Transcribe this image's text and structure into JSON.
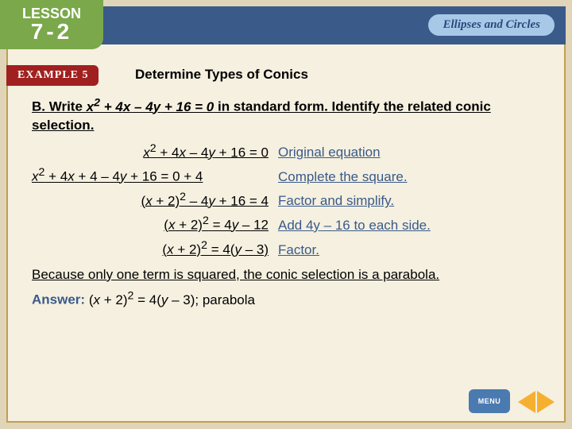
{
  "header": {
    "lesson_word": "LESSON",
    "lesson_number": "7-2",
    "topic": "Ellipses and Circles",
    "header_bg": "#3a5a8a",
    "lesson_bg": "#7aa84a",
    "topic_bg": "#a8c8e8"
  },
  "example": {
    "label": "EXAMPLE 5",
    "bg": "#a02020",
    "title": "Determine Types of Conics"
  },
  "prompt": {
    "text_prefix": "B. Write ",
    "equation": "x² + 4x – 4y + 16 = 0",
    "text_mid": " in standard form. Identify the related conic selection."
  },
  "steps": [
    {
      "eq": "x² + 4x – 4y + 16 = 0",
      "reason": "Original equation"
    },
    {
      "eq": "x² + 4x + 4 – 4y + 16 = 0 + 4",
      "reason": "Complete the square."
    },
    {
      "eq": "(x + 2)² – 4y + 16 = 4",
      "reason": "Factor and simplify."
    },
    {
      "eq": "(x + 2)² = 4y – 12",
      "reason": "Add 4y – 16 to each side."
    },
    {
      "eq": "(x + 2)² = 4(y – 3)",
      "reason": "Factor."
    }
  ],
  "conclusion": "Because only one term is squared, the conic selection is a parabola.",
  "answer": {
    "label": "Answer:",
    "text": "(x + 2)² = 4(y – 3); parabola"
  },
  "nav": {
    "menu": "MENU",
    "menu_bg": "#4a7ab0",
    "arrow_color": "#f5b030"
  },
  "colors": {
    "page_bg": "#e0d5b8",
    "panel_bg": "#f5f0e0",
    "border": "#c0a050",
    "reason_text": "#3a5a8a"
  }
}
